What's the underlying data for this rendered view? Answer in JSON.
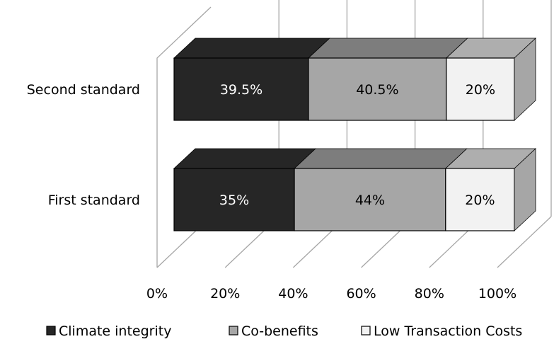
{
  "chart_data": {
    "type": "bar",
    "orientation": "horizontal",
    "stacked": "percent",
    "three_d": true,
    "categories": [
      "Second standard",
      "First standard"
    ],
    "series": [
      {
        "name": "Climate integrity",
        "values": [
          39.5,
          35
        ],
        "labels": [
          "39.5%",
          "35%"
        ],
        "color": "#262626"
      },
      {
        "name": "Co-benefits",
        "values": [
          40.5,
          44
        ],
        "labels": [
          "40.5%",
          "44%"
        ],
        "color": "#a6a6a6"
      },
      {
        "name": "Low Transaction Costs",
        "values": [
          20,
          20
        ],
        "labels": [
          "20%",
          "20%"
        ],
        "color": "#f2f2f2"
      }
    ],
    "x_ticks": [
      "0%",
      "20%",
      "40%",
      "60%",
      "80%",
      "100%"
    ],
    "xlim": [
      0,
      100
    ],
    "title": "",
    "xlabel": "",
    "ylabel": "",
    "legend_position": "bottom",
    "grid": true
  }
}
